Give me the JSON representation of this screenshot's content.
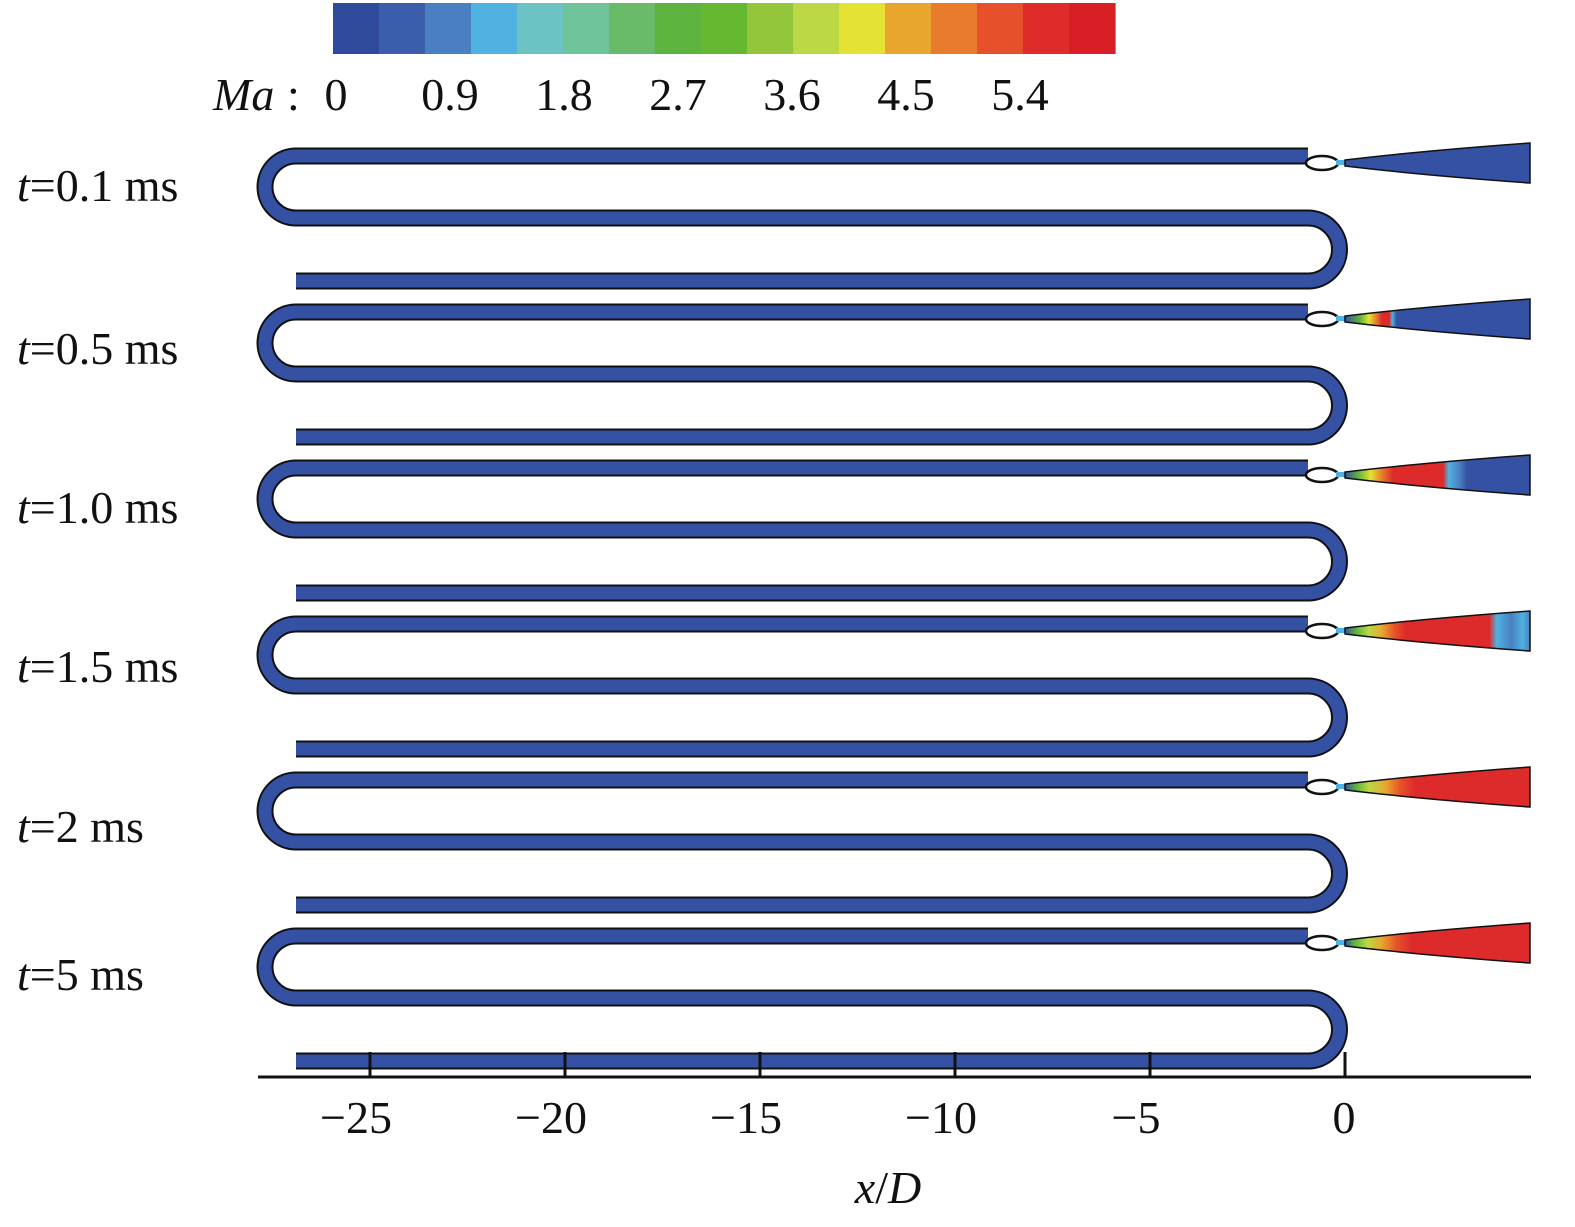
{
  "colorbar": {
    "label_var": "Ma",
    "label_sep": ":",
    "ticks": [
      "0",
      "0.9",
      "1.8",
      "2.7",
      "3.6",
      "4.5",
      "5.4"
    ],
    "colors": [
      "#2f4a9b",
      "#3b5eac",
      "#4a7fc1",
      "#4fb2e0",
      "#6cc3c4",
      "#6fc39a",
      "#69bb6a",
      "#5cb33e",
      "#66b831",
      "#93c63a",
      "#bcd845",
      "#e4e232",
      "#e8a62f",
      "#e97b2c",
      "#e6512b",
      "#e02b2b",
      "#d81f26"
    ]
  },
  "panels": [
    {
      "label_var": "t",
      "label_val": "=0.1 ms",
      "state": "s0"
    },
    {
      "label_var": "t",
      "label_val": "=0.5 ms",
      "state": "s1"
    },
    {
      "label_var": "t",
      "label_val": "=1.0 ms",
      "state": "s2"
    },
    {
      "label_var": "t",
      "label_val": "=1.5 ms",
      "state": "s3"
    },
    {
      "label_var": "t",
      "label_val": "=2 ms",
      "state": "s4"
    },
    {
      "label_var": "t",
      "label_val": "=5 ms",
      "state": "s5"
    }
  ],
  "x_axis": {
    "label_var1": "x",
    "label_sep": "/",
    "label_var2": "D",
    "ticks": [
      {
        "value": -25,
        "label": "−25"
      },
      {
        "value": -20,
        "label": "−20"
      },
      {
        "value": -15,
        "label": "−15"
      },
      {
        "value": -10,
        "label": "−10"
      },
      {
        "value": -5,
        "label": "−5"
      },
      {
        "value": 0,
        "label": "0"
      }
    ]
  },
  "colors": {
    "tube_fill": "#3451a4",
    "outline": "#111111",
    "high_mach": "#dd2a2a"
  }
}
